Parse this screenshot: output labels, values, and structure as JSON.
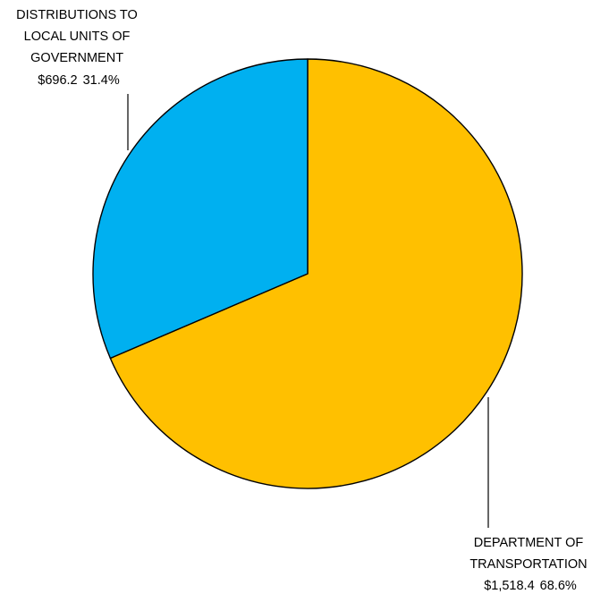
{
  "chart_data": {
    "type": "pie",
    "title": "",
    "start_angle_deg": 0,
    "direction": "clockwise",
    "slices": [
      {
        "label_lines": [
          "DEPARTMENT OF",
          "TRANSPORTATION"
        ],
        "value": 1518.4,
        "value_text": "$1,518.4",
        "percent_text": "68.6%",
        "color": "#FFC000"
      },
      {
        "label_lines": [
          "DISTRIBUTIONS TO",
          "LOCAL UNITS OF",
          "GOVERNMENT"
        ],
        "value": 696.2,
        "value_text": "$696.2",
        "percent_text": "31.4%",
        "color": "#00B0F0"
      }
    ],
    "edge_color": "#000000"
  }
}
